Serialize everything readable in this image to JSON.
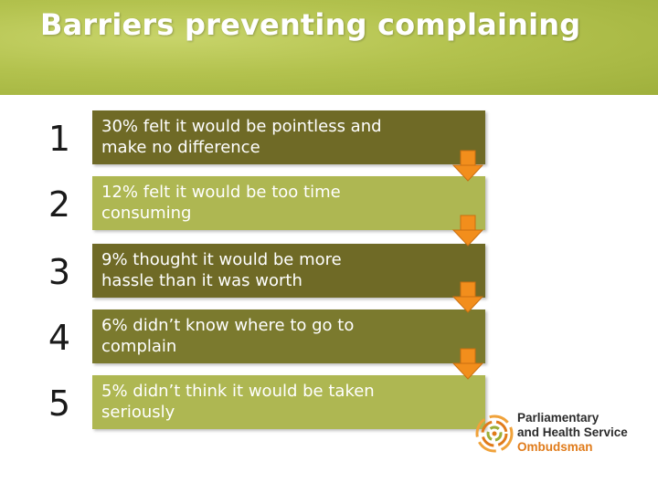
{
  "slide": {
    "title": "Barriers preventing complaining",
    "colors": {
      "header": "#b3c24e",
      "row_dark": "#6f6a26",
      "row_light": "#aeb752",
      "arrow": "#f28e1c"
    }
  },
  "items": [
    {
      "rank": "1",
      "text": "30% felt it would be pointless and\nmake no difference"
    },
    {
      "rank": "2",
      "text": "12% felt it would be too time\nconsuming"
    },
    {
      "rank": "3",
      "text": "9% thought it would be more\nhassle than it was worth"
    },
    {
      "rank": "4",
      "text": "6% didn’t know where to go to\ncomplain"
    },
    {
      "rank": "5",
      "text": "5% didn’t think it would be taken\nseriously"
    }
  ],
  "logo": {
    "line1": "Parliamentary",
    "line2": "and Health Service",
    "line3": "Ombudsman"
  }
}
